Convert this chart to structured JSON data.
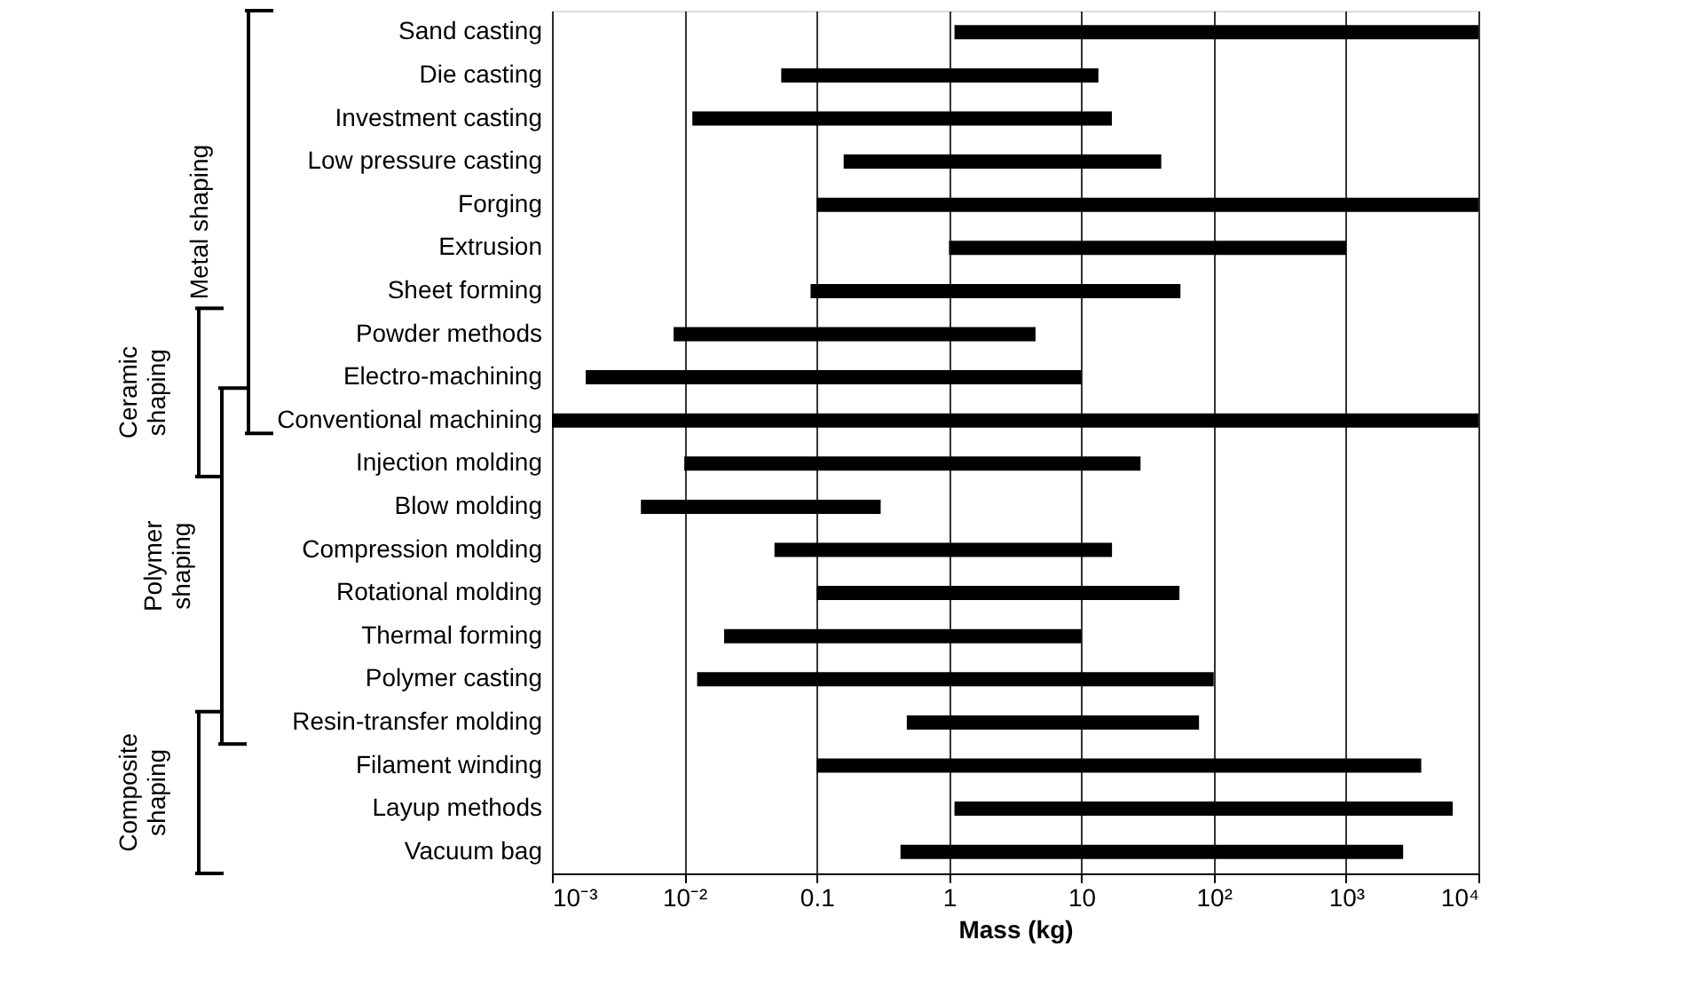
{
  "chart_data": {
    "type": "bar",
    "orientation": "horizontal",
    "xlabel": "Mass (kg)",
    "log": "x",
    "categories": [
      "Sand casting",
      "Die casting",
      "Investment casting",
      "Low pressure casting",
      "Forging",
      "Extrusion",
      "Sheet forming",
      "Powder methods",
      "Electro-machining",
      "Conventional machining",
      "Injection molding",
      "Blow molding",
      "Compression molding",
      "Rotational molding",
      "Thermal forming",
      "Polymer casting",
      "Resin-transfer molding",
      "Filament winding",
      "Layup methods",
      "Vacuum bag"
    ],
    "base": [
      1.1,
      0.054,
      0.0115,
      0.16,
      0.1,
      1,
      0.09,
      0.0083,
      0.0018,
      0.001,
      0.01,
      0.0047,
      0.048,
      0.1,
      0.02,
      0.0125,
      0.48,
      0.1,
      1.1,
      0.43
    ],
    "values": [
      9998.9,
      13.4,
      17,
      40,
      9999.9,
      1000,
      56,
      4.5,
      10,
      9999.999,
      28,
      0.3,
      17,
      55,
      10,
      100,
      77,
      3700,
      6400,
      2700
    ],
    "color": "#000000",
    "xlim": [
      0.001,
      10000
    ],
    "xticks": [
      {
        "value": 0.001,
        "label": "10⁻³"
      },
      {
        "value": 0.01,
        "label": "10⁻²"
      },
      0.1,
      1,
      10,
      {
        "value": 100,
        "label": "10²"
      },
      {
        "value": 1000,
        "label": "10³"
      },
      {
        "value": 10000,
        "label": "10⁴"
      }
    ],
    "grid": "x",
    "annotations": [
      "Metal shaping",
      "Ceramic\nshaping",
      "Polymer\nshaping",
      "Composite\nshaping"
    ]
  }
}
